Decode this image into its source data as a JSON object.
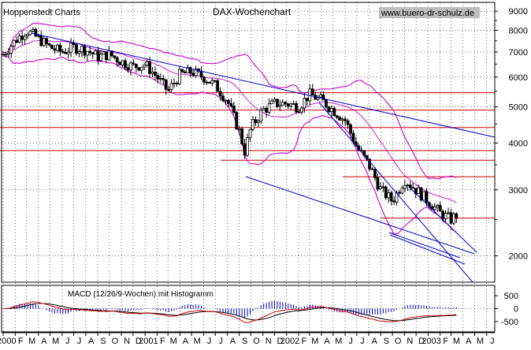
{
  "source_label": "Hoppenstedt Charts",
  "title": "DAX-Wochenchart",
  "watermark": "www.buero-dr-schulz.de",
  "macd_label": "MACD (12/26/9-Wochen) mit Histogramm",
  "colors": {
    "background": "#ffffff",
    "candles": "#000000",
    "bollinger": "#cc00cc",
    "trendlines": "#0000cc",
    "horizontals": "#cc0000",
    "histogram": "#0000cc",
    "macd_line": "#cc0000",
    "signal_line": "#000000",
    "grid": "#000000"
  },
  "chart_data": [
    {
      "type": "candlestick",
      "title": "DAX-Wochenchart",
      "y_scale": "log",
      "ylim": [
        1700,
        9500
      ],
      "y_ticks": [
        9000,
        8000,
        7000,
        6000,
        5000,
        4000,
        3000,
        2000
      ],
      "y_tick_labels": [
        "9000",
        "8000",
        "7000",
        "6000",
        "5000",
        "4000",
        "3000",
        "2000"
      ],
      "x_range": [
        "2000-01-01",
        "2003-06-30"
      ],
      "grid": "dotted",
      "horizontal_levels": [
        5450,
        4900,
        4400,
        3820,
        3600,
        3250,
        2520
      ],
      "series": [
        {
          "kind": "close_path",
          "x": [
            "2000-01-01",
            "2000-02-01",
            "2000-03-01",
            "2000-04-01",
            "2000-05-01",
            "2000-06-01",
            "2000-07-01",
            "2000-08-01",
            "2000-09-01",
            "2000-10-01",
            "2000-11-01",
            "2000-12-01",
            "2001-01-01",
            "2001-02-01",
            "2001-03-01",
            "2001-04-01",
            "2001-05-01",
            "2001-06-01",
            "2001-07-01",
            "2001-08-01",
            "2001-09-01",
            "2001-09-15",
            "2001-10-01",
            "2001-11-01",
            "2001-12-01",
            "2002-01-01",
            "2002-02-01",
            "2002-03-01",
            "2002-04-01",
            "2002-05-01",
            "2002-06-01",
            "2002-07-01",
            "2002-08-01",
            "2002-09-01",
            "2002-10-01",
            "2002-11-01",
            "2002-12-01",
            "2003-01-01",
            "2003-02-01",
            "2003-03-01",
            "2003-03-20"
          ],
          "y": [
            6900,
            7500,
            8000,
            7600,
            7200,
            7000,
            7200,
            7100,
            6800,
            6900,
            6600,
            6400,
            6500,
            6000,
            5500,
            6100,
            6200,
            6000,
            5700,
            5200,
            4300,
            3800,
            4400,
            4900,
            5100,
            5100,
            5000,
            5400,
            5200,
            4900,
            4600,
            3900,
            3500,
            3000,
            2800,
            3200,
            3000,
            2800,
            2600,
            2500,
            2600
          ]
        }
      ]
    },
    {
      "type": "macd",
      "title": "MACD (12/26/9-Wochen) mit Histogramm",
      "ylim": [
        -900,
        900
      ],
      "y_ticks": [
        500,
        0,
        -500
      ],
      "y_tick_labels": [
        "500",
        "0",
        "-500"
      ],
      "x_tick_labels": [
        "2000",
        "F",
        "M",
        "A",
        "M",
        "J",
        "J",
        "A",
        "S",
        "O",
        "N",
        "D",
        "2001",
        "F",
        "M",
        "A",
        "M",
        "J",
        "J",
        "A",
        "S",
        "O",
        "N",
        "D",
        "2002",
        "F",
        "M",
        "A",
        "M",
        "J",
        "J",
        "A",
        "S",
        "O",
        "N",
        "D",
        "2003",
        "F",
        "M",
        "A",
        "M",
        "J"
      ]
    }
  ]
}
